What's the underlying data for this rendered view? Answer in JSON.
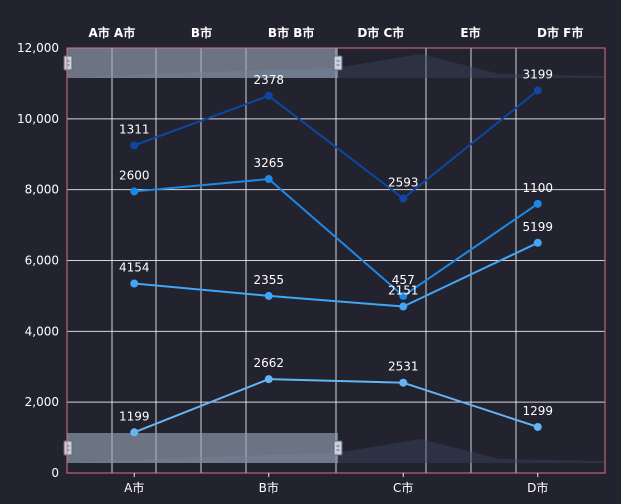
{
  "chart_data": {
    "type": "line",
    "categories": [
      "A市",
      "B市",
      "C市",
      "D市"
    ],
    "top_axis_labels": [
      "A市 A市",
      "B市",
      "B市 B市",
      "D市 C市",
      "E市",
      "D市 F市"
    ],
    "ylim": [
      0,
      12000
    ],
    "y_ticks": [
      "0",
      "2,000",
      "4,000",
      "6,000",
      "8,000",
      "10,000",
      "12,000"
    ],
    "grid": true,
    "series": [
      {
        "values": [
          9250,
          10650,
          7750,
          10800
        ],
        "labels": [
          "1311",
          "2378",
          "2593",
          "3199"
        ],
        "color": "#0d47a1"
      },
      {
        "values": [
          7950,
          8300,
          5000,
          7600
        ],
        "labels": [
          "2600",
          "3265",
          "457",
          "1100"
        ],
        "color": "#1e88e5"
      },
      {
        "values": [
          5350,
          5000,
          4700,
          6500
        ],
        "labels": [
          "4154",
          "2355",
          "2151",
          "5199"
        ],
        "color": "#42a5f5"
      },
      {
        "values": [
          1150,
          2650,
          2550,
          1300
        ],
        "labels": [
          "1199",
          "2662",
          "2531",
          "1299"
        ],
        "color": "#64b5f6"
      }
    ],
    "colors": {
      "background": "#22232f",
      "grid": "#e8e8ee",
      "text": "#ffffff",
      "frame": "#e06c83",
      "zoom_fill": "#9aa6b8"
    }
  }
}
